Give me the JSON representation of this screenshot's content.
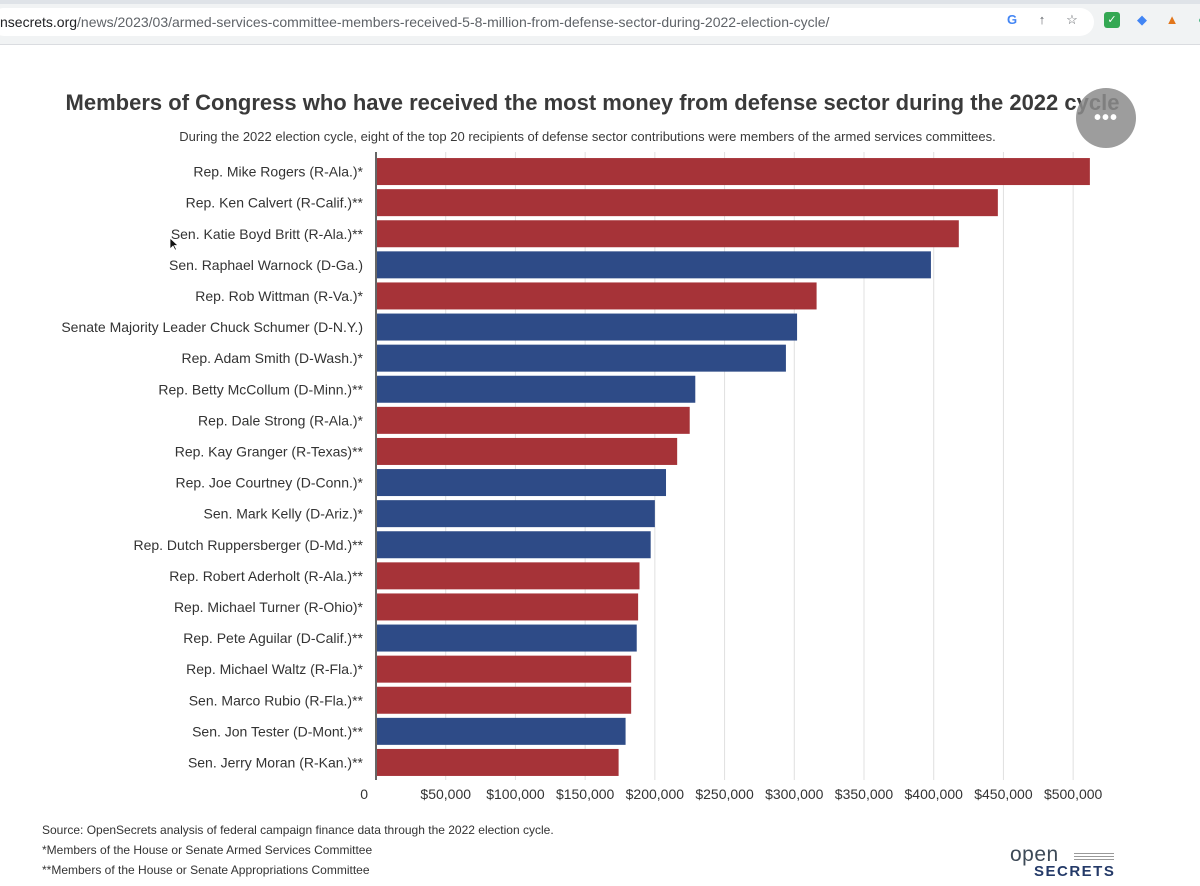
{
  "browser": {
    "url_host": "nsecrets.org",
    "url_path": "/news/2023/03/armed-services-committee-members-received-5-8-million-from-defense-sector-during-2022-election-cycle/",
    "icons": [
      "google-lens-icon",
      "share-icon",
      "bookmark-star-icon"
    ],
    "extensions": [
      "check-extension-icon",
      "diamond-extension-icon",
      "fox-extension-icon",
      "circle-extension-icon"
    ]
  },
  "page": {
    "more_button_label": "•••"
  },
  "colors": {
    "republican": "#a63338",
    "democrat": "#2e4b87",
    "gridline": "#e0e0e0",
    "axis": "#333333"
  },
  "chart_data": {
    "type": "bar",
    "orientation": "horizontal",
    "title": "Members of Congress who have received the most money from defense sector during the 2022 cycle",
    "subtitle": "During the 2022 election cycle, eight of the top 20 recipients of defense sector contributions were members of the armed services committees.",
    "xlabel": "",
    "ylabel": "",
    "xlim": [
      0,
      525000
    ],
    "x_ticks": [
      {
        "value": 0,
        "label": "0"
      },
      {
        "value": 50000,
        "label": "$50,000"
      },
      {
        "value": 100000,
        "label": "$100,000"
      },
      {
        "value": 150000,
        "label": "$150,000"
      },
      {
        "value": 200000,
        "label": "$200,000"
      },
      {
        "value": 250000,
        "label": "$250,000"
      },
      {
        "value": 300000,
        "label": "$300,000"
      },
      {
        "value": 350000,
        "label": "$350,000"
      },
      {
        "value": 400000,
        "label": "$400,000"
      },
      {
        "value": 450000,
        "label": "$450,000"
      },
      {
        "value": 500000,
        "label": "$500,000"
      }
    ],
    "grid": true,
    "categories": [
      "Rep. Mike Rogers (R-Ala.)*",
      "Rep. Ken Calvert (R-Calif.)**",
      "Sen. Katie Boyd Britt (R-Ala.)**",
      "Sen. Raphael Warnock (D-Ga.)",
      "Rep. Rob Wittman (R-Va.)*",
      "Senate Majority Leader Chuck Schumer (D-N.Y.)",
      "Rep. Adam Smith (D-Wash.)*",
      "Rep. Betty McCollum (D-Minn.)**",
      "Rep. Dale Strong (R-Ala.)*",
      "Rep. Kay Granger (R-Texas)**",
      "Rep. Joe Courtney (D-Conn.)*",
      "Sen. Mark Kelly (D-Ariz.)*",
      "Rep. Dutch Ruppersberger (D-Md.)**",
      "Rep. Robert Aderholt (R-Ala.)**",
      "Rep. Michael Turner (R-Ohio)*",
      "Rep. Pete Aguilar (D-Calif.)**",
      "Rep. Michael Waltz (R-Fla.)*",
      "Sen. Marco Rubio (R-Fla.)**",
      "Sen. Jon Tester (D-Mont.)**",
      "Sen. Jerry Moran (R-Kan.)**"
    ],
    "values": [
      512000,
      446000,
      418000,
      398000,
      316000,
      302000,
      294000,
      229000,
      225000,
      216000,
      208000,
      200000,
      197000,
      189000,
      188000,
      187000,
      183000,
      183000,
      179000,
      174000
    ],
    "party": [
      "R",
      "R",
      "R",
      "D",
      "R",
      "D",
      "D",
      "D",
      "R",
      "R",
      "D",
      "D",
      "D",
      "R",
      "R",
      "D",
      "R",
      "R",
      "D",
      "R"
    ],
    "legend": "none"
  },
  "footnotes": {
    "source": "Source: OpenSecrets analysis of federal campaign finance data through the 2022 election cycle.",
    "armed": "*Members of the House or Senate Armed Services Committee",
    "approp": "**Members of the House or Senate Appropriations Committee"
  },
  "logo": {
    "top": "open",
    "bottom": "SECRETS"
  }
}
